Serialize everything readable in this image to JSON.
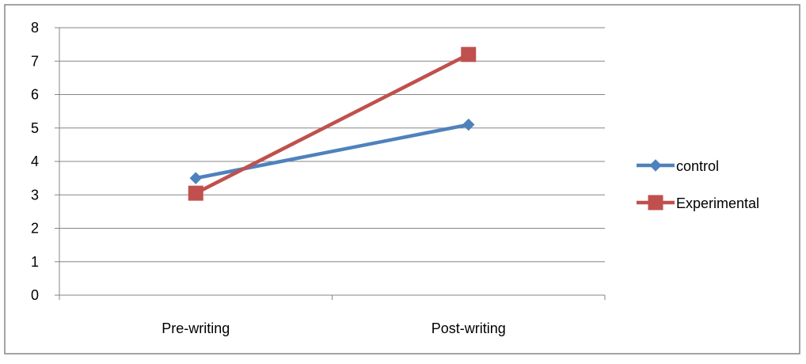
{
  "chart_data": {
    "type": "line",
    "title": "",
    "xlabel": "",
    "ylabel": "",
    "categories": [
      "Pre-writing",
      "Post-writing"
    ],
    "ylim": [
      0,
      8
    ],
    "yticks": [
      "0",
      "1",
      "2",
      "3",
      "4",
      "5",
      "6",
      "7",
      "8"
    ],
    "grid": true,
    "legend_position": "right",
    "series": [
      {
        "name": "control",
        "values": [
          3.5,
          5.1
        ],
        "color": "#4f81bd",
        "marker": "diamond"
      },
      {
        "name": "Experimental",
        "values": [
          3.05,
          7.2
        ],
        "color": "#c0504d",
        "marker": "square"
      }
    ]
  }
}
